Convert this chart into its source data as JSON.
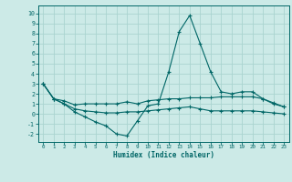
{
  "title": "",
  "xlabel": "Humidex (Indice chaleur)",
  "background_color": "#cceae7",
  "grid_color": "#aad4d0",
  "line_color": "#006666",
  "xlim": [
    -0.5,
    23.5
  ],
  "ylim": [
    -2.8,
    10.8
  ],
  "xticks": [
    0,
    1,
    2,
    3,
    4,
    5,
    6,
    7,
    8,
    9,
    10,
    11,
    12,
    13,
    14,
    15,
    16,
    17,
    18,
    19,
    20,
    21,
    22,
    23
  ],
  "yticks": [
    -2,
    -1,
    0,
    1,
    2,
    3,
    4,
    5,
    6,
    7,
    8,
    9,
    10
  ],
  "line1_x": [
    0,
    1,
    2,
    3,
    4,
    5,
    6,
    7,
    8,
    9,
    10,
    11,
    12,
    13,
    14,
    15,
    16,
    17,
    18,
    19,
    20,
    21,
    22,
    23
  ],
  "line1_y": [
    3.0,
    1.5,
    1.3,
    0.9,
    1.0,
    1.0,
    1.0,
    1.0,
    1.2,
    1.0,
    1.3,
    1.4,
    1.5,
    1.5,
    1.6,
    1.6,
    1.6,
    1.7,
    1.7,
    1.7,
    1.7,
    1.5,
    1.1,
    0.7
  ],
  "line2_x": [
    0,
    1,
    2,
    3,
    4,
    5,
    6,
    7,
    8,
    9,
    10,
    11,
    12,
    13,
    14,
    15,
    16,
    17,
    18,
    19,
    20,
    21,
    22,
    23
  ],
  "line2_y": [
    3.0,
    1.5,
    1.0,
    0.2,
    -0.3,
    -0.8,
    -1.2,
    -2.0,
    -2.2,
    -0.7,
    0.8,
    1.0,
    4.2,
    8.2,
    9.8,
    7.0,
    4.2,
    2.2,
    2.0,
    2.2,
    2.2,
    1.5,
    1.0,
    0.7
  ],
  "line3_x": [
    0,
    1,
    2,
    3,
    4,
    5,
    6,
    7,
    8,
    9,
    10,
    11,
    12,
    13,
    14,
    15,
    16,
    17,
    18,
    19,
    20,
    21,
    22,
    23
  ],
  "line3_y": [
    3.0,
    1.5,
    1.0,
    0.5,
    0.3,
    0.2,
    0.1,
    0.1,
    0.2,
    0.2,
    0.3,
    0.4,
    0.5,
    0.6,
    0.7,
    0.5,
    0.3,
    0.3,
    0.3,
    0.3,
    0.3,
    0.2,
    0.1,
    0.0
  ]
}
